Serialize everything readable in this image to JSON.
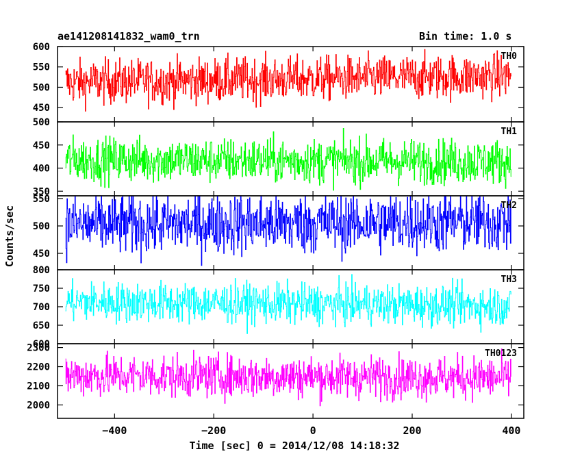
{
  "header": {
    "left_title": "ae141208141832_wam0_trn",
    "right_title": "Bin time: 1.0 s"
  },
  "chart_data": {
    "type": "line",
    "title": "ae141208141832_wam0_trn",
    "subtitle": "Bin time: 1.0 s",
    "xlabel": "Time [sec] 0 = 2014/12/08 14:18:32",
    "ylabel": "Counts/sec",
    "xlim": [
      -515,
      425
    ],
    "x_ticks": [
      -400,
      -200,
      0,
      200,
      400
    ],
    "x_tick_labels": [
      "−400",
      "−200",
      "0",
      "200",
      "400"
    ],
    "x_start": -499,
    "x_end": 399,
    "x_step": 1,
    "grid": false,
    "panels": [
      {
        "name": "TH0",
        "color": "#ff0000",
        "ylim": [
          415,
          600
        ],
        "y_ticks": [
          450,
          500,
          550,
          600
        ],
        "mean": 520,
        "spread": 27,
        "trend": 0.3
      },
      {
        "name": "TH1",
        "color": "#00ff00",
        "ylim": [
          340,
          500
        ],
        "y_ticks": [
          350,
          400,
          450,
          500
        ],
        "mean": 416,
        "spread": 24,
        "trend": -0.1
      },
      {
        "name": "TH2",
        "color": "#0000ff",
        "ylim": [
          420,
          555
        ],
        "y_ticks": [
          450,
          500,
          550
        ],
        "mean": 505,
        "spread": 28,
        "trend": 0.1
      },
      {
        "name": "TH3",
        "color": "#00ffff",
        "ylim": [
          600,
          800
        ],
        "y_ticks": [
          600,
          650,
          700,
          750,
          800
        ],
        "mean": 708,
        "spread": 27,
        "trend": -0.2
      },
      {
        "name": "TH0123",
        "color": "#ff00ff",
        "ylim": [
          1930,
          2320
        ],
        "y_ticks": [
          2000,
          2100,
          2200,
          2300
        ],
        "mean": 2148,
        "spread": 55,
        "trend": -0.1
      }
    ]
  }
}
